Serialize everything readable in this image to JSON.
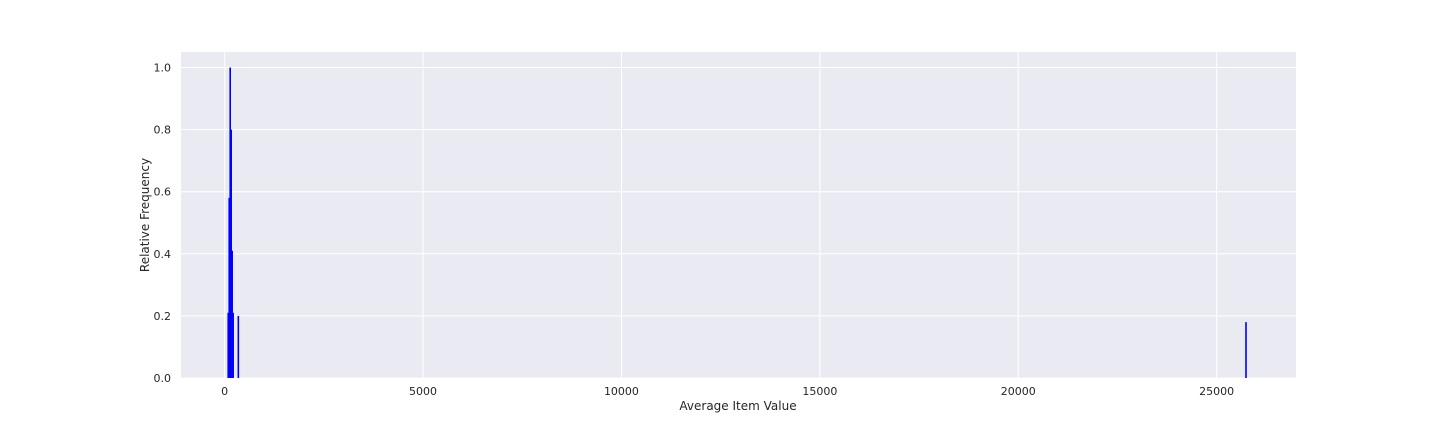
{
  "chart_data": {
    "type": "bar",
    "xlabel": "Average Item Value",
    "ylabel": "Relative Frequency",
    "xlim": [
      -1100,
      27000
    ],
    "ylim": [
      0,
      1.05
    ],
    "x_ticks": [
      0,
      5000,
      10000,
      15000,
      20000,
      25000
    ],
    "x_tick_labels": [
      "0",
      "5000",
      "10000",
      "15000",
      "20000",
      "25000"
    ],
    "y_ticks": [
      0.0,
      0.2,
      0.4,
      0.6,
      0.8,
      1.0
    ],
    "y_tick_labels": [
      "0.0",
      "0.2",
      "0.4",
      "0.6",
      "0.8",
      "1.0"
    ],
    "grid": true,
    "background_color": "#eaeaf2",
    "grid_color": "#ffffff",
    "bar_color": "#0000ff",
    "bars": [
      {
        "x": 90,
        "y": 0.21
      },
      {
        "x": 115,
        "y": 0.58
      },
      {
        "x": 140,
        "y": 1.0
      },
      {
        "x": 165,
        "y": 0.8
      },
      {
        "x": 190,
        "y": 0.41
      },
      {
        "x": 215,
        "y": 0.21
      },
      {
        "x": 345,
        "y": 0.2
      },
      {
        "x": 25740,
        "y": 0.18
      }
    ]
  }
}
